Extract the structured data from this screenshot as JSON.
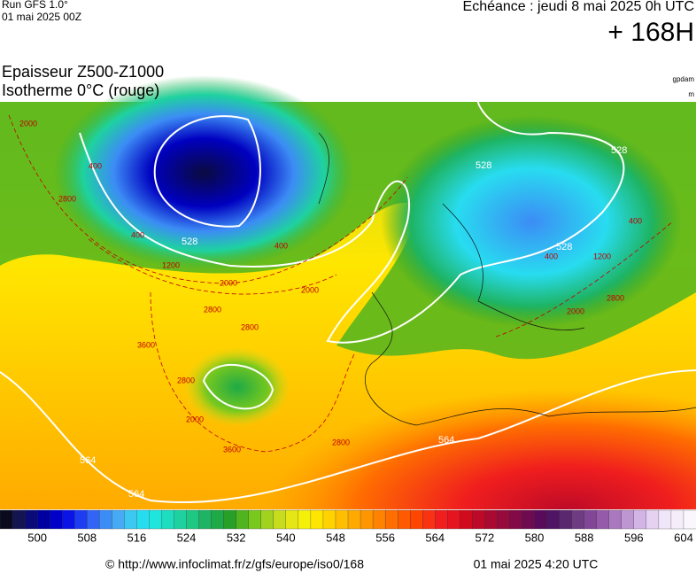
{
  "header": {
    "run": "Run GFS 1.0°",
    "run_date": "01 mai 2025 00Z",
    "echeance": "Echéance : jeudi 8 mai 2025 0h UTC",
    "lead": "+ 168H",
    "title_line1": "Epaisseur Z500-Z1000",
    "title_line2": "Isotherme 0°C (rouge)",
    "unit_top": "gpdam",
    "unit_bottom": "m"
  },
  "map": {
    "thickness_labels": [
      "528",
      "528",
      "528",
      "528",
      "564",
      "564",
      "564"
    ],
    "iso0_labels": [
      "2000",
      "2800",
      "400",
      "400",
      "400",
      "1200",
      "2000",
      "2000",
      "2800",
      "2800",
      "3600",
      "2800",
      "2000",
      "3600",
      "2800",
      "2000",
      "2800",
      "1200",
      "400",
      "400"
    ]
  },
  "colorbar": {
    "colors": [
      "#0a0a1e",
      "#141450",
      "#0a0a78",
      "#0000a0",
      "#0000c8",
      "#0a14e6",
      "#1e3cf0",
      "#3264f5",
      "#3c8cf5",
      "#46aaf5",
      "#3cc8f0",
      "#28dcf0",
      "#1ee6dc",
      "#1edcbe",
      "#1ed2a0",
      "#1ec882",
      "#1eb464",
      "#1eaa46",
      "#28a028",
      "#50b41e",
      "#78c81e",
      "#a0d21e",
      "#c8dc1e",
      "#e6e614",
      "#f5f00a",
      "#ffe600",
      "#ffd200",
      "#ffbe00",
      "#ffaa00",
      "#ff9600",
      "#ff8200",
      "#ff6e00",
      "#ff5a00",
      "#ff4600",
      "#fa3214",
      "#f01e1e",
      "#e6141e",
      "#d20a1e",
      "#be0a28",
      "#aa0a32",
      "#960a3c",
      "#820a46",
      "#6e0a50",
      "#5a0a5a",
      "#501464",
      "#5a286e",
      "#6e3c82",
      "#824696",
      "#965aaa",
      "#aa78be",
      "#be96d2",
      "#d2b4e6",
      "#e6d2f0",
      "#f0e6fa",
      "#f5eefa",
      "#faf6fd"
    ],
    "labels": [
      "500",
      "508",
      "516",
      "524",
      "532",
      "540",
      "548",
      "556",
      "564",
      "572",
      "580",
      "588",
      "596",
      "604"
    ]
  },
  "footer": {
    "url": "© http://www.infoclimat.fr/z/gfs/europe/iso0/168",
    "timestamp": "01 mai 2025  4:20 UTC"
  }
}
